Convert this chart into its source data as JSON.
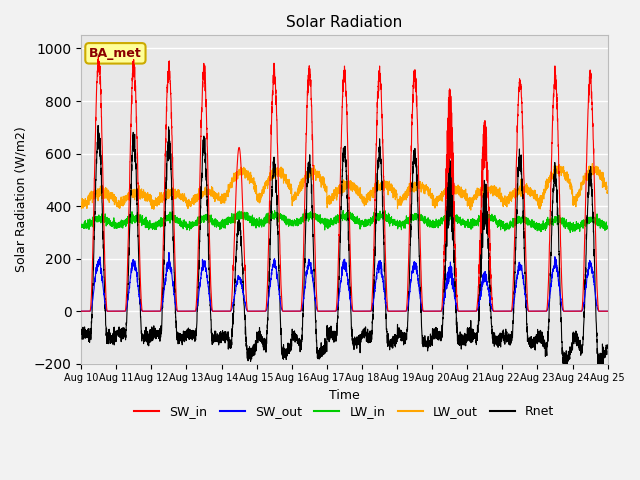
{
  "title": "Solar Radiation",
  "ylabel": "Solar Radiation (W/m2)",
  "xlabel": "Time",
  "ylim": [
    -200,
    1050
  ],
  "yticks": [
    -200,
    0,
    200,
    400,
    600,
    800,
    1000
  ],
  "n_days": 15,
  "points_per_day": 288,
  "colors": {
    "SW_in": "#ff0000",
    "SW_out": "#0000ff",
    "LW_in": "#00cc00",
    "LW_out": "#ffa500",
    "Rnet": "#000000"
  },
  "legend_label": "BA_met",
  "background_color": "#e8e8e8",
  "grid_color": "#ffffff",
  "annotation_box_color": "#ffff99",
  "annotation_box_edge": "#ccaa00"
}
